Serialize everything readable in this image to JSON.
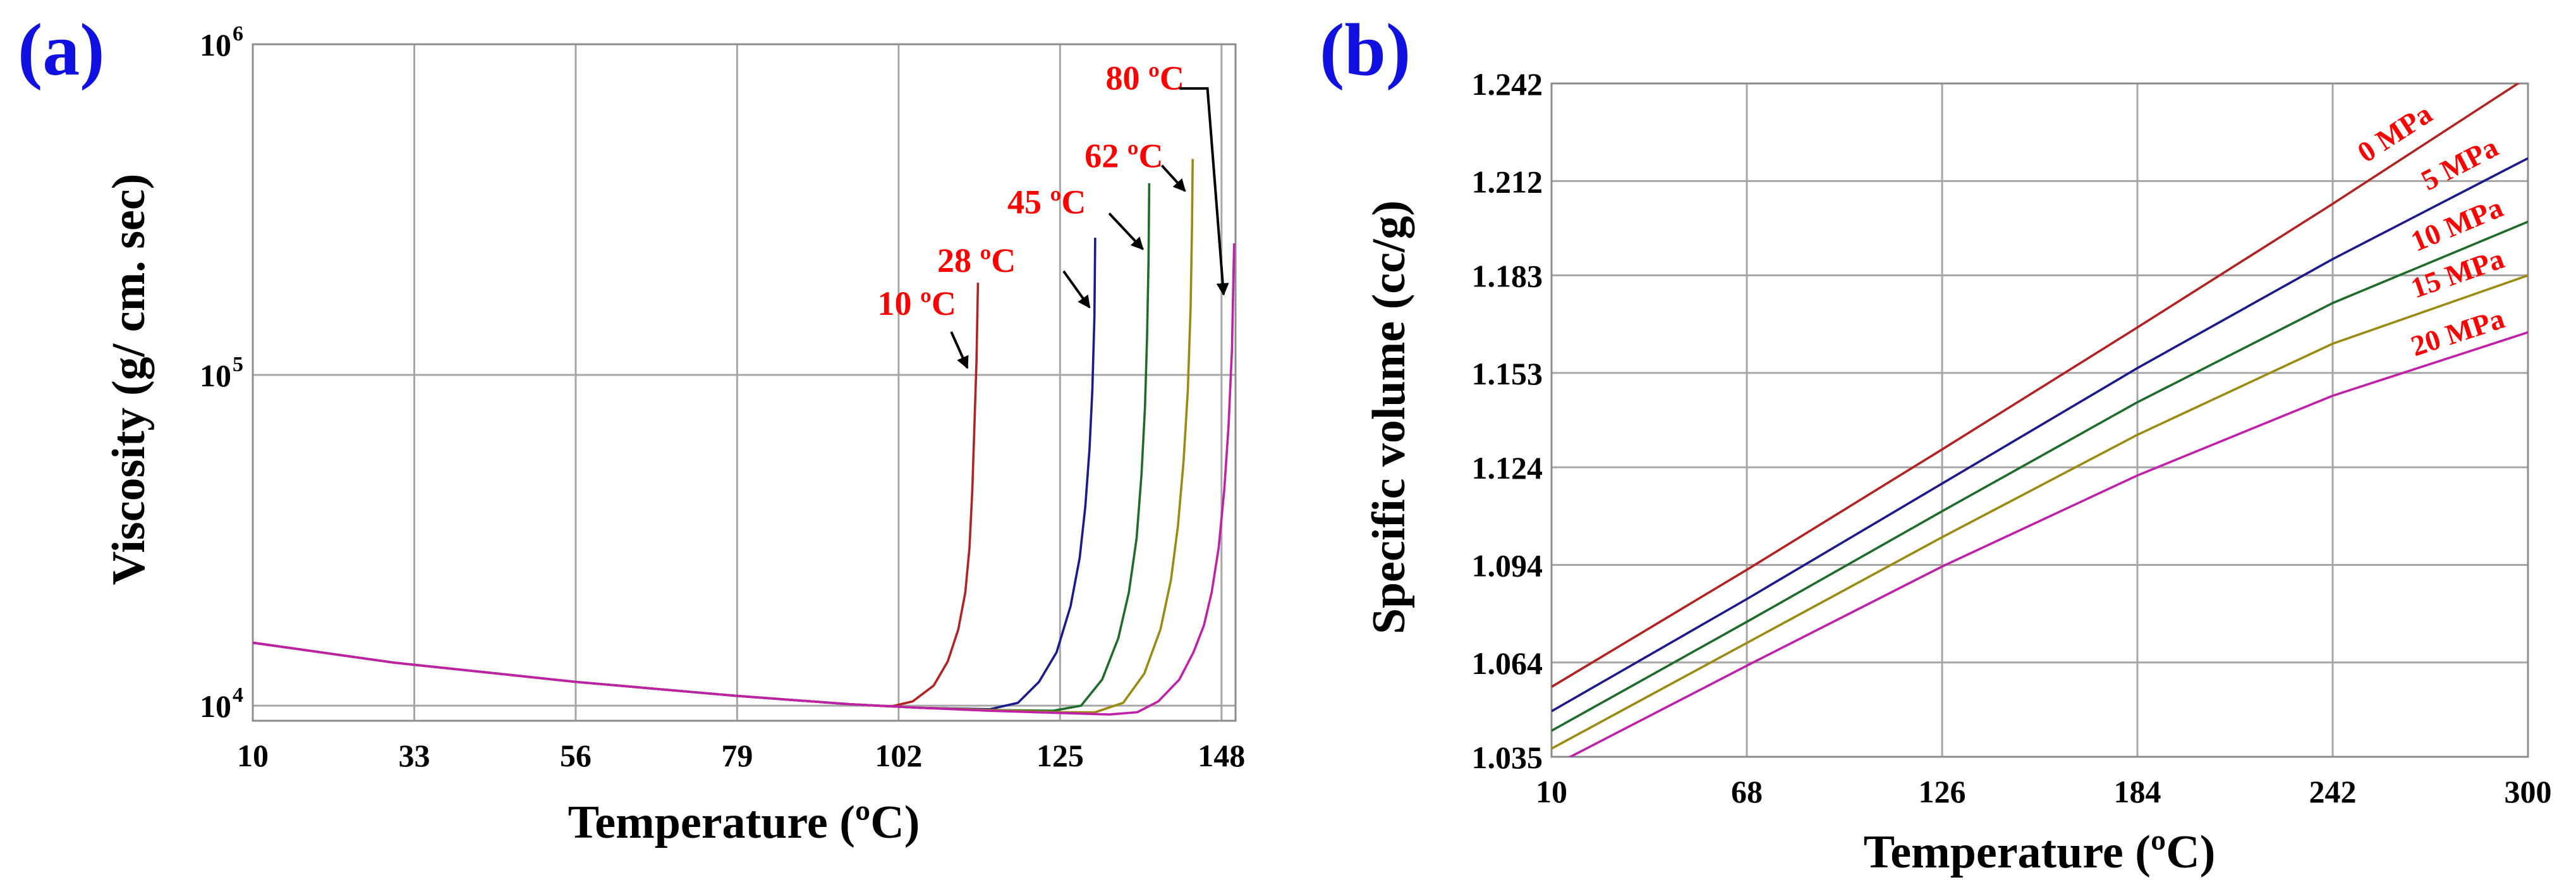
{
  "colors": {
    "panel_label": "#1010e0",
    "annotation": "#ff0000",
    "arrow": "#000000",
    "grid": "#a6a6a6",
    "c10": "#b22222",
    "c28": "#1a1a8c",
    "c45": "#1e6b2a",
    "c62": "#9a8a10",
    "c80": "#c020a8"
  },
  "chart_data": [
    {
      "panel_label": "(a)",
      "type": "line",
      "title": "",
      "xlabel": "Temperature (ºC)",
      "ylabel": "Viscosity (g/ cm. sec)",
      "xlim": [
        10,
        150
      ],
      "ylim": [
        9000,
        1000000
      ],
      "yscale": "log",
      "grid": true,
      "x_ticks": [
        "10",
        "33",
        "56",
        "79",
        "102",
        "125",
        "148"
      ],
      "y_ticks": [
        {
          "base": "10",
          "exp": "4",
          "value": 10000
        },
        {
          "base": "10",
          "exp": "5",
          "value": 100000
        },
        {
          "base": "10",
          "exp": "6",
          "value": 1000000
        }
      ],
      "series": [
        {
          "name": "10 ºC",
          "color_key": "c10",
          "label_pos": [
            99,
            152000
          ],
          "arrow_from": [
            109.5,
            135000
          ],
          "arrow_to": [
            111.8,
            105000
          ],
          "points": [
            [
              10,
              15500
            ],
            [
              30,
              13500
            ],
            [
              56,
              11800
            ],
            [
              79,
              10700
            ],
            [
              95,
              10100
            ],
            [
              101,
              9950
            ],
            [
              104,
              10300
            ],
            [
              107,
              11500
            ],
            [
              109,
              13600
            ],
            [
              110.5,
              17000
            ],
            [
              111.5,
              22000
            ],
            [
              112.1,
              30000
            ],
            [
              112.5,
              45000
            ],
            [
              112.8,
              70000
            ],
            [
              113.1,
              110000
            ],
            [
              113.3,
              190000
            ]
          ]
        },
        {
          "name": "28 ºC",
          "color_key": "c28",
          "label_pos": [
            107.5,
            205000
          ],
          "arrow_from": [
            125.5,
            206000
          ],
          "arrow_to": [
            129.2,
            160000
          ],
          "points": [
            [
              10,
              15500
            ],
            [
              30,
              13500
            ],
            [
              56,
              11800
            ],
            [
              79,
              10700
            ],
            [
              95,
              10100
            ],
            [
              105,
              9850
            ],
            [
              115,
              9750
            ],
            [
              119,
              10200
            ],
            [
              122,
              11800
            ],
            [
              124.5,
              14500
            ],
            [
              126.5,
              20000
            ],
            [
              127.8,
              28000
            ],
            [
              128.6,
              40000
            ],
            [
              129.2,
              60000
            ],
            [
              129.6,
              90000
            ],
            [
              129.9,
              150000
            ],
            [
              130,
              260000
            ]
          ]
        },
        {
          "name": "45 ºC",
          "color_key": "c45",
          "label_pos": [
            117.5,
            308000
          ],
          "arrow_from": [
            132,
            308000
          ],
          "arrow_to": [
            136.8,
            240000
          ],
          "points": [
            [
              10,
              15500
            ],
            [
              30,
              13500
            ],
            [
              56,
              11800
            ],
            [
              79,
              10700
            ],
            [
              95,
              10100
            ],
            [
              105,
              9850
            ],
            [
              115,
              9700
            ],
            [
              124,
              9650
            ],
            [
              128,
              10000
            ],
            [
              131,
              12000
            ],
            [
              133.3,
              16000
            ],
            [
              134.8,
              22000
            ],
            [
              135.9,
              32000
            ],
            [
              136.6,
              50000
            ],
            [
              137.1,
              80000
            ],
            [
              137.4,
              130000
            ],
            [
              137.6,
              220000
            ],
            [
              137.7,
              380000
            ]
          ]
        },
        {
          "name": "62 ºC",
          "color_key": "c62",
          "label_pos": [
            128.5,
            425000
          ],
          "arrow_from": [
            139.5,
            430000
          ],
          "arrow_to": [
            142.8,
            360000
          ],
          "points": [
            [
              10,
              15500
            ],
            [
              30,
              13500
            ],
            [
              56,
              11800
            ],
            [
              79,
              10700
            ],
            [
              95,
              10100
            ],
            [
              105,
              9850
            ],
            [
              115,
              9700
            ],
            [
              125,
              9550
            ],
            [
              130,
              9550
            ],
            [
              134,
              10200
            ],
            [
              137,
              12500
            ],
            [
              139.3,
              17000
            ],
            [
              140.8,
              24000
            ],
            [
              141.8,
              35000
            ],
            [
              142.6,
              55000
            ],
            [
              143.2,
              90000
            ],
            [
              143.6,
              160000
            ],
            [
              143.8,
              280000
            ],
            [
              143.9,
              450000
            ]
          ]
        },
        {
          "name": "80 ºC",
          "color_key": "c80",
          "label_pos": [
            131.5,
            730000
          ],
          "arrow_from": [
            142,
            735000
          ],
          "arrow_to": [
            146,
            735000
          ],
          "arrow_to2": [
            148.3,
            175000
          ],
          "points": [
            [
              10,
              15500
            ],
            [
              30,
              13500
            ],
            [
              56,
              11800
            ],
            [
              79,
              10700
            ],
            [
              95,
              10100
            ],
            [
              105,
              9850
            ],
            [
              115,
              9650
            ],
            [
              125,
              9500
            ],
            [
              132,
              9400
            ],
            [
              136,
              9550
            ],
            [
              139,
              10300
            ],
            [
              142,
              12000
            ],
            [
              144,
              14500
            ],
            [
              145.5,
              17500
            ],
            [
              146.6,
              22000
            ],
            [
              147.6,
              30000
            ],
            [
              148.4,
              45000
            ],
            [
              149,
              70000
            ],
            [
              149.5,
              120000
            ],
            [
              149.7,
              200000
            ],
            [
              149.8,
              250000
            ]
          ]
        }
      ]
    },
    {
      "panel_label": "(b)",
      "type": "line",
      "title": "",
      "xlabel": "Temperature (ºC)",
      "ylabel": "Specific volume (cc/g)",
      "xlim": [
        10,
        300
      ],
      "ylim": [
        1.035,
        1.242
      ],
      "grid": true,
      "x_ticks": [
        "10",
        "68",
        "126",
        "184",
        "242",
        "300"
      ],
      "y_ticks": [
        "1.035",
        "1.064",
        "1.094",
        "1.124",
        "1.153",
        "1.183",
        "1.212",
        "1.242"
      ],
      "series": [
        {
          "name": "0 MPa",
          "color_key": "c10",
          "label_at_x": 262,
          "label_offset": 30,
          "points": [
            [
              10,
              1.0565
            ],
            [
              68,
              1.0925
            ],
            [
              126,
              1.1295
            ],
            [
              184,
              1.167
            ],
            [
              242,
              1.205
            ],
            [
              300,
              1.244
            ]
          ]
        },
        {
          "name": "5 MPa",
          "color_key": "c28",
          "label_at_x": 281,
          "label_offset": 30,
          "points": [
            [
              10,
              1.049
            ],
            [
              68,
              1.0835
            ],
            [
              126,
              1.119
            ],
            [
              184,
              1.1545
            ],
            [
              242,
              1.188
            ],
            [
              300,
              1.219
            ]
          ]
        },
        {
          "name": "10 MPa",
          "color_key": "c45",
          "label_at_x": 280,
          "label_offset": 26,
          "points": [
            [
              10,
              1.043
            ],
            [
              68,
              1.0765
            ],
            [
              126,
              1.1105
            ],
            [
              184,
              1.144
            ],
            [
              242,
              1.1745
            ],
            [
              300,
              1.1995
            ]
          ]
        },
        {
          "name": "15 MPa",
          "color_key": "c62",
          "label_at_x": 280,
          "label_offset": 26,
          "points": [
            [
              10,
              1.0375
            ],
            [
              68,
              1.07
            ],
            [
              126,
              1.1025
            ],
            [
              184,
              1.134
            ],
            [
              242,
              1.162
            ],
            [
              300,
              1.183
            ]
          ]
        },
        {
          "name": "20 MPa",
          "color_key": "c80",
          "label_at_x": 280,
          "label_offset": 20,
          "points": [
            [
              10,
              1.032
            ],
            [
              68,
              1.063
            ],
            [
              126,
              1.0935
            ],
            [
              184,
              1.1215
            ],
            [
              242,
              1.146
            ],
            [
              300,
              1.1655
            ]
          ]
        }
      ]
    }
  ]
}
